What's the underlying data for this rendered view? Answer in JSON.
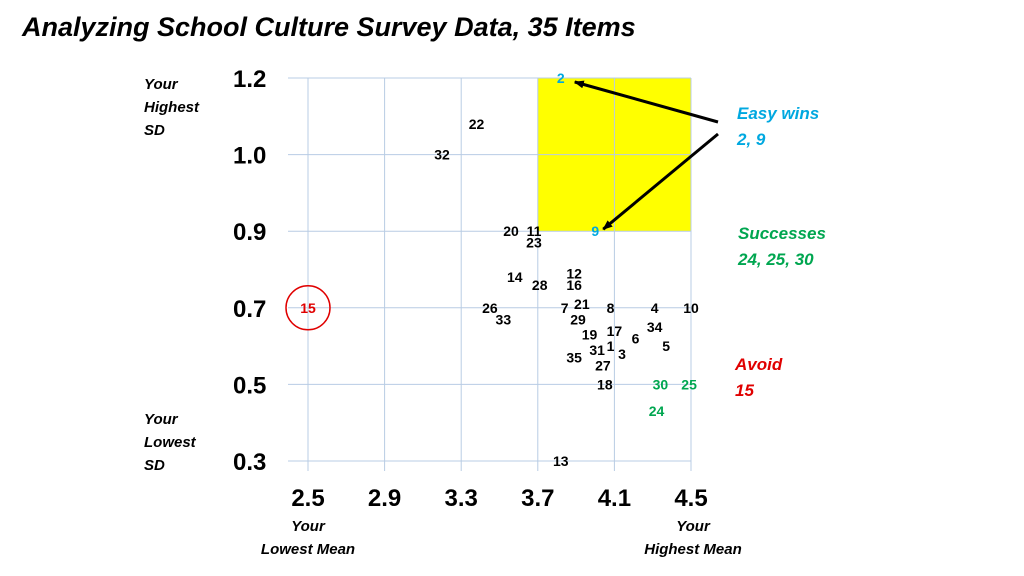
{
  "title": "Analyzing School Culture Survey Data, 35 Items",
  "annotations": {
    "y_high": [
      "Your",
      "Highest",
      "SD"
    ],
    "y_low": [
      "Your",
      "Lowest",
      "SD"
    ],
    "x_low": [
      "Your",
      "Lowest Mean"
    ],
    "x_high": [
      "Your",
      "Highest Mean"
    ],
    "easy_wins": {
      "label": "Easy wins",
      "items": "2, 9",
      "color": "#00A8E0"
    },
    "successes": {
      "label": "Successes",
      "items": "24, 25, 30",
      "color": "#00A650"
    },
    "avoid": {
      "label": "Avoid",
      "items": "15",
      "color": "#E00000"
    }
  },
  "colors": {
    "highlight": "#FFFF00",
    "grid": "#B8CCE4",
    "default_point": "#000000"
  },
  "chart_data": {
    "type": "scatter",
    "title": "Analyzing School Culture Survey Data, 35 Items",
    "xlabel": "",
    "ylabel": "",
    "x_ticks": [
      2.5,
      2.9,
      3.3,
      3.7,
      4.1,
      4.5
    ],
    "y_ticks": [
      0.3,
      0.5,
      0.7,
      0.9,
      1.0,
      1.2
    ],
    "x_tick_labels": [
      "2.5",
      "2.9",
      "3.3",
      "3.7",
      "4.1",
      "4.5"
    ],
    "y_tick_labels": [
      "0.3",
      "0.5",
      "0.7",
      "0.9",
      "1.0",
      "1.2"
    ],
    "xlim": [
      2.5,
      4.5
    ],
    "y_scale": "categorical-evenly-spaced",
    "grid": true,
    "highlight_region": {
      "x": [
        3.7,
        4.5
      ],
      "y": [
        0.9,
        1.2
      ]
    },
    "points": [
      {
        "label": "2",
        "x": 3.82,
        "y": 1.2,
        "group": "easy_win"
      },
      {
        "label": "22",
        "x": 3.38,
        "y": 1.08,
        "group": "normal"
      },
      {
        "label": "32",
        "x": 3.2,
        "y": 1.0,
        "group": "normal"
      },
      {
        "label": "20",
        "x": 3.56,
        "y": 0.9,
        "group": "normal"
      },
      {
        "label": "11",
        "x": 3.68,
        "y": 0.9,
        "group": "normal"
      },
      {
        "label": "23",
        "x": 3.68,
        "y": 0.87,
        "group": "normal"
      },
      {
        "label": "9",
        "x": 4.0,
        "y": 0.9,
        "group": "easy_win"
      },
      {
        "label": "14",
        "x": 3.58,
        "y": 0.78,
        "group": "normal"
      },
      {
        "label": "28",
        "x": 3.71,
        "y": 0.76,
        "group": "normal"
      },
      {
        "label": "12",
        "x": 3.89,
        "y": 0.79,
        "group": "normal"
      },
      {
        "label": "16",
        "x": 3.89,
        "y": 0.76,
        "group": "normal"
      },
      {
        "label": "15",
        "x": 2.5,
        "y": 0.7,
        "group": "avoid"
      },
      {
        "label": "26",
        "x": 3.45,
        "y": 0.7,
        "group": "normal"
      },
      {
        "label": "33",
        "x": 3.52,
        "y": 0.67,
        "group": "normal"
      },
      {
        "label": "7",
        "x": 3.84,
        "y": 0.7,
        "group": "normal"
      },
      {
        "label": "21",
        "x": 3.93,
        "y": 0.71,
        "group": "normal"
      },
      {
        "label": "8",
        "x": 4.08,
        "y": 0.7,
        "group": "normal"
      },
      {
        "label": "4",
        "x": 4.31,
        "y": 0.7,
        "group": "normal"
      },
      {
        "label": "10",
        "x": 4.5,
        "y": 0.7,
        "group": "normal"
      },
      {
        "label": "29",
        "x": 3.91,
        "y": 0.67,
        "group": "normal"
      },
      {
        "label": "19",
        "x": 3.97,
        "y": 0.63,
        "group": "normal"
      },
      {
        "label": "17",
        "x": 4.1,
        "y": 0.64,
        "group": "normal"
      },
      {
        "label": "6",
        "x": 4.21,
        "y": 0.62,
        "group": "normal"
      },
      {
        "label": "34",
        "x": 4.31,
        "y": 0.65,
        "group": "normal"
      },
      {
        "label": "1",
        "x": 4.08,
        "y": 0.6,
        "group": "normal"
      },
      {
        "label": "31",
        "x": 4.01,
        "y": 0.59,
        "group": "normal"
      },
      {
        "label": "3",
        "x": 4.14,
        "y": 0.58,
        "group": "normal"
      },
      {
        "label": "5",
        "x": 4.37,
        "y": 0.6,
        "group": "normal"
      },
      {
        "label": "35",
        "x": 3.89,
        "y": 0.57,
        "group": "normal"
      },
      {
        "label": "27",
        "x": 4.04,
        "y": 0.55,
        "group": "normal"
      },
      {
        "label": "18",
        "x": 4.05,
        "y": 0.5,
        "group": "normal"
      },
      {
        "label": "30",
        "x": 4.34,
        "y": 0.5,
        "group": "success"
      },
      {
        "label": "25",
        "x": 4.49,
        "y": 0.5,
        "group": "success"
      },
      {
        "label": "24",
        "x": 4.32,
        "y": 0.43,
        "group": "success"
      },
      {
        "label": "13",
        "x": 3.82,
        "y": 0.3,
        "group": "normal"
      }
    ]
  }
}
